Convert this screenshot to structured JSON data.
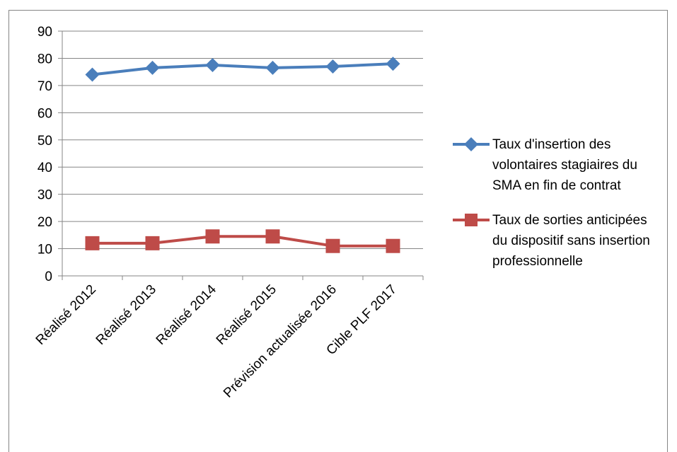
{
  "chart_data": {
    "type": "line",
    "categories": [
      "Réalisé 2012",
      "Réalisé 2013",
      "Réalisé 2014",
      "Réalisé 2015",
      "Prévision actualisée 2016",
      "Cible PLF 2017"
    ],
    "series": [
      {
        "name": "Taux d'insertion des volontaires stagiaires du SMA en fin de contrat",
        "values": [
          74,
          76.5,
          77.5,
          76.5,
          77,
          78
        ],
        "color": "#4a7ebb",
        "marker": "diamond"
      },
      {
        "name": "Taux de sorties anticipées du dispositif sans insertion professionnelle",
        "values": [
          12,
          12,
          14.5,
          14.5,
          11,
          11
        ],
        "color": "#be4b48",
        "marker": "square"
      }
    ],
    "ylim": [
      0,
      90
    ],
    "yticks": [
      0,
      10,
      20,
      30,
      40,
      50,
      60,
      70,
      80,
      90
    ],
    "grid": true,
    "legend": "right"
  }
}
